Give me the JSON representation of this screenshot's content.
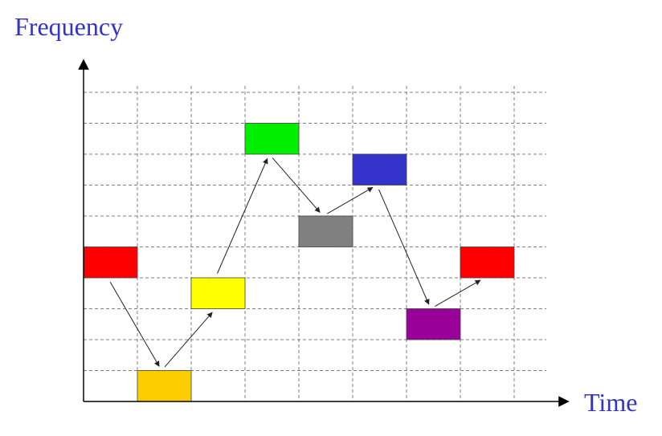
{
  "labels": {
    "y_axis": "Frequency",
    "x_axis": "Time"
  },
  "colors": {
    "label_text": "#3333cc",
    "axis": "#000000",
    "grid": "#7f7f7f",
    "arrow": "#222222",
    "box_border": "#444444"
  },
  "grid": {
    "time_slots": 8,
    "frequency_channels": 10
  },
  "hops": [
    {
      "time_slot": 1,
      "channel": 5,
      "color": "#ff0000"
    },
    {
      "time_slot": 2,
      "channel": 1,
      "color": "#ffcc00"
    },
    {
      "time_slot": 3,
      "channel": 4,
      "color": "#ffff00"
    },
    {
      "time_slot": 4,
      "channel": 9,
      "color": "#00ee00"
    },
    {
      "time_slot": 5,
      "channel": 6,
      "color": "#808080"
    },
    {
      "time_slot": 6,
      "channel": 8,
      "color": "#3333cc"
    },
    {
      "time_slot": 7,
      "channel": 3,
      "color": "#990099"
    },
    {
      "time_slot": 8,
      "channel": 5,
      "color": "#ff0000"
    }
  ]
}
